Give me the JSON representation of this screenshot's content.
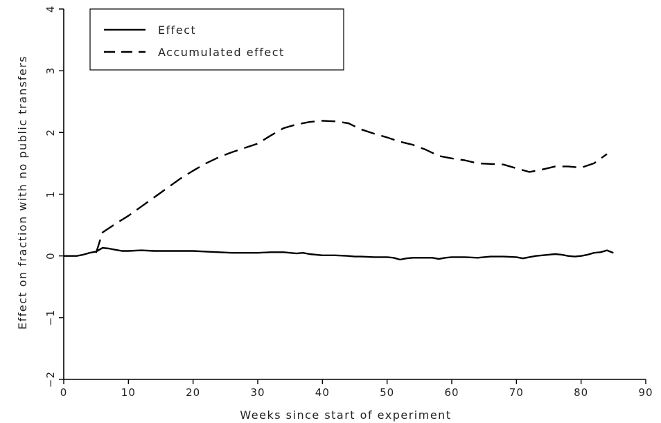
{
  "chart_data": {
    "type": "line",
    "title": "",
    "xlabel": "Weeks since start of experiment",
    "ylabel": "Effect on fraction with no public transfers",
    "xlim": [
      0,
      90
    ],
    "ylim": [
      -2,
      4
    ],
    "xticks": [
      0,
      10,
      20,
      30,
      40,
      50,
      60,
      70,
      80,
      90
    ],
    "yticks": [
      -2,
      -1,
      0,
      1,
      2,
      3,
      4
    ],
    "xtick_labels": [
      "0",
      "10",
      "20",
      "30",
      "40",
      "50",
      "60",
      "70",
      "80",
      "90"
    ],
    "ytick_labels": [
      "−2",
      "−1",
      "0",
      "1",
      "2",
      "3",
      "4"
    ],
    "grid": false,
    "legend_position": "top-left",
    "series": [
      {
        "name": "Effect",
        "style": "solid",
        "color": "#000000",
        "x": [
          0,
          2,
          3,
          4,
          5,
          6,
          7,
          8,
          9,
          10,
          12,
          14,
          16,
          18,
          20,
          22,
          24,
          26,
          28,
          30,
          32,
          34,
          35,
          36,
          37,
          38,
          40,
          42,
          44,
          45,
          46,
          48,
          50,
          51,
          52,
          53,
          54,
          56,
          57,
          58,
          59,
          60,
          62,
          64,
          65,
          66,
          68,
          70,
          71,
          72,
          73,
          74,
          76,
          77,
          78,
          79,
          80,
          81,
          82,
          83,
          84,
          85
        ],
        "y": [
          0,
          0,
          0.02,
          0.05,
          0.07,
          0.13,
          0.12,
          0.1,
          0.08,
          0.08,
          0.09,
          0.08,
          0.08,
          0.08,
          0.08,
          0.07,
          0.06,
          0.05,
          0.05,
          0.05,
          0.06,
          0.06,
          0.05,
          0.04,
          0.05,
          0.03,
          0.01,
          0.01,
          0.0,
          -0.01,
          -0.01,
          -0.02,
          -0.02,
          -0.03,
          -0.06,
          -0.04,
          -0.03,
          -0.03,
          -0.03,
          -0.05,
          -0.03,
          -0.02,
          -0.02,
          -0.03,
          -0.02,
          -0.01,
          -0.01,
          -0.02,
          -0.04,
          -0.02,
          0.0,
          0.01,
          0.03,
          0.02,
          0.0,
          -0.01,
          0.0,
          0.02,
          0.05,
          0.06,
          0.09,
          0.05
        ]
      },
      {
        "name": "Accumulated effect",
        "style": "dashed",
        "color": "#000000",
        "x": [
          5,
          6,
          8,
          10,
          12,
          14,
          16,
          18,
          20,
          22,
          24,
          26,
          28,
          30,
          32,
          34,
          36,
          38,
          40,
          42,
          44,
          46,
          48,
          50,
          52,
          54,
          56,
          58,
          60,
          62,
          64,
          66,
          68,
          70,
          72,
          74,
          76,
          78,
          80,
          82,
          84
        ],
        "y": [
          0.05,
          0.38,
          0.52,
          0.65,
          0.8,
          0.95,
          1.1,
          1.25,
          1.38,
          1.5,
          1.6,
          1.68,
          1.75,
          1.82,
          1.95,
          2.07,
          2.13,
          2.17,
          2.19,
          2.18,
          2.15,
          2.05,
          1.98,
          1.92,
          1.85,
          1.8,
          1.72,
          1.62,
          1.58,
          1.55,
          1.5,
          1.49,
          1.48,
          1.42,
          1.36,
          1.4,
          1.45,
          1.45,
          1.43,
          1.5,
          1.65
        ]
      }
    ]
  }
}
